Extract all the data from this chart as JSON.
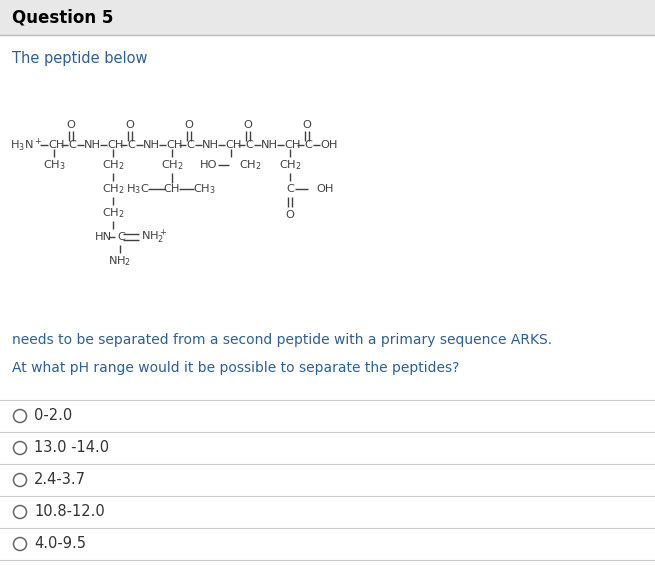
{
  "title": "Question 5",
  "title_bg": "#e8e8e8",
  "body_bg": "#ffffff",
  "intro_text": "The peptide below",
  "description_text": "needs to be separated from a second peptide with a primary sequence ARKS.",
  "question_text": "At what pH range would it be possible to separate the peptides?",
  "options": [
    "0-2.0",
    "13.0 -14.0",
    "2.4-3.7",
    "10.8-12.0",
    "4.0-9.5"
  ],
  "text_color": "#2c6096",
  "black_color": "#000000",
  "chain_color": "#404040",
  "gray_line": "#cccccc",
  "option_text_color": "#333333",
  "figw": 6.55,
  "figh": 5.65,
  "dpi": 100
}
